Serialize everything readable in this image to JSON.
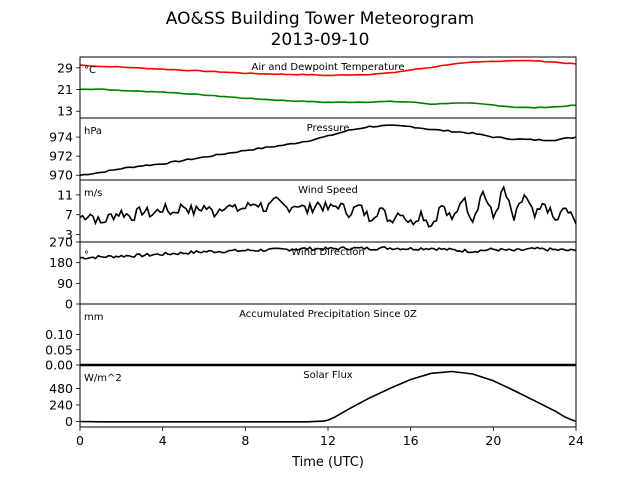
{
  "figure": {
    "title_line1": "AO&SS Building Tower Meteorogram",
    "title_line2": "2013-09-10",
    "xlabel": "Time (UTC)",
    "xticks": [
      "0",
      "4",
      "8",
      "12",
      "16",
      "20",
      "24"
    ],
    "xlim": [
      0,
      24
    ]
  },
  "chart_data": [
    {
      "type": "line",
      "title": "Air and Dewpoint Temperature",
      "unit": "°C",
      "ylim": [
        10.5,
        33
      ],
      "yticks": [
        13,
        21,
        29
      ],
      "ytick_labels": [
        "13",
        "21",
        "29"
      ],
      "series": [
        {
          "color": "#ff0000",
          "x": [
            0,
            1,
            2,
            4,
            6,
            8,
            10,
            11,
            12,
            13,
            14,
            15,
            16,
            17,
            18,
            19,
            20,
            21,
            22,
            23,
            24
          ],
          "y": [
            30,
            29.5,
            29.3,
            28.5,
            27.8,
            27,
            26.6,
            26.5,
            26.2,
            26.4,
            26.6,
            27.1,
            28.2,
            29.2,
            30.4,
            31,
            31.4,
            31.7,
            31.6,
            31.1,
            30.4
          ]
        },
        {
          "color": "#008000",
          "x": [
            0,
            1,
            2,
            4,
            6,
            8,
            10,
            12,
            14,
            15,
            16,
            17,
            18,
            19,
            20,
            21,
            22,
            23,
            24
          ],
          "y": [
            21.1,
            21.2,
            20.6,
            20.1,
            19,
            17.8,
            16.9,
            16.3,
            16.4,
            16.6,
            16.4,
            15.6,
            16,
            15.9,
            15.3,
            14.5,
            14.3,
            14.6,
            15.2
          ]
        }
      ]
    },
    {
      "type": "line",
      "title": "Pressure",
      "unit": "hPa",
      "ylim": [
        969.5,
        976
      ],
      "yticks": [
        970,
        972,
        974
      ],
      "ytick_labels": [
        "970",
        "972",
        "974"
      ],
      "series": [
        {
          "color": "#000000",
          "x": [
            0,
            1,
            2,
            3,
            4,
            6,
            8,
            10,
            11,
            12,
            13,
            14,
            15,
            16,
            17,
            18,
            19,
            20,
            21,
            22,
            23,
            24
          ],
          "y": [
            970,
            970.3,
            970.7,
            971,
            971.2,
            971.9,
            972.6,
            973.2,
            973.6,
            974.1,
            974.7,
            975.1,
            975.2,
            975.1,
            974.8,
            974.6,
            974.4,
            974,
            973.8,
            973.7,
            973.7,
            974
          ]
        }
      ]
    },
    {
      "type": "line",
      "title": "Wind Speed",
      "unit": "m/s",
      "ylim": [
        1.5,
        14
      ],
      "yticks": [
        3,
        7,
        11
      ],
      "ytick_labels": [
        "3",
        "7",
        "11"
      ],
      "series": [
        {
          "color": "#000000",
          "x": [
            0,
            0.5,
            1,
            1.5,
            2,
            2.5,
            3,
            3.5,
            4,
            4.5,
            5,
            5.5,
            6,
            6.5,
            7,
            7.5,
            8,
            8.5,
            9,
            9.5,
            10,
            10.5,
            11,
            11.5,
            12,
            12.5,
            13,
            13.5,
            14,
            14.5,
            15,
            15.5,
            16,
            16.5,
            17,
            17.5,
            18,
            18.5,
            19,
            19.5,
            20,
            20.5,
            21,
            21.5,
            22,
            22.5,
            23,
            23.5,
            24
          ],
          "y": [
            6.5,
            7.2,
            5.2,
            6.8,
            7.5,
            6.6,
            7.8,
            7.1,
            8.3,
            7.4,
            8.9,
            7.6,
            8.6,
            7.4,
            9.1,
            8,
            8.4,
            9.5,
            8.2,
            9.6,
            8.4,
            9.2,
            7.8,
            9.3,
            8.1,
            9,
            7.5,
            8.6,
            6.4,
            8.2,
            5.9,
            7.8,
            5.3,
            7.4,
            4.8,
            8.9,
            5.6,
            10.7,
            6.2,
            11.8,
            6.3,
            12.2,
            5.9,
            11,
            6.4,
            9.2,
            5.6,
            8.3,
            5.1
          ]
        }
      ]
    },
    {
      "type": "line",
      "title": "Wind Direction",
      "unit": "°",
      "ylim": [
        0,
        270
      ],
      "yticks": [
        0,
        90,
        180,
        270
      ],
      "ytick_labels": [
        "0",
        "90",
        "180",
        "270"
      ],
      "series": [
        {
          "color": "#000000",
          "x": [
            0,
            1,
            2,
            3,
            4,
            5,
            6,
            7,
            8,
            9,
            10,
            11,
            12,
            13,
            14,
            15,
            16,
            17,
            18,
            19,
            20,
            21,
            22,
            23,
            24
          ],
          "y": [
            201,
            205,
            209,
            212,
            217,
            222,
            228,
            230,
            233,
            235,
            238,
            241,
            240,
            243,
            242,
            244,
            241,
            243,
            235,
            230,
            238,
            232,
            240,
            236,
            232
          ]
        }
      ]
    },
    {
      "type": "line",
      "title": "Accumulated Precipitation Since 0Z",
      "unit": "mm",
      "ylim": [
        0,
        0.2
      ],
      "yticks": [
        0,
        0.05,
        0.1
      ],
      "ytick_labels": [
        "0.00",
        "0.05",
        "0.10"
      ],
      "series": [
        {
          "color": "#000000",
          "x": [
            0,
            24
          ],
          "y": [
            0,
            0
          ]
        }
      ]
    },
    {
      "type": "line",
      "title": "Solar Flux",
      "unit": "W/m^2",
      "ylim": [
        -80,
        820
      ],
      "yticks": [
        0,
        240,
        480
      ],
      "ytick_labels": [
        "0",
        "240",
        "480"
      ],
      "series": [
        {
          "color": "#000000",
          "x": [
            0,
            1,
            4,
            8,
            11,
            11.8,
            12,
            12.3,
            13,
            14,
            15,
            16,
            17,
            18,
            19,
            20,
            21,
            22,
            23,
            23.5,
            24
          ],
          "y": [
            0,
            -5,
            -5,
            -5,
            -5,
            5,
            20,
            60,
            180,
            340,
            480,
            610,
            700,
            725,
            690,
            590,
            450,
            300,
            150,
            60,
            0
          ]
        }
      ]
    }
  ]
}
